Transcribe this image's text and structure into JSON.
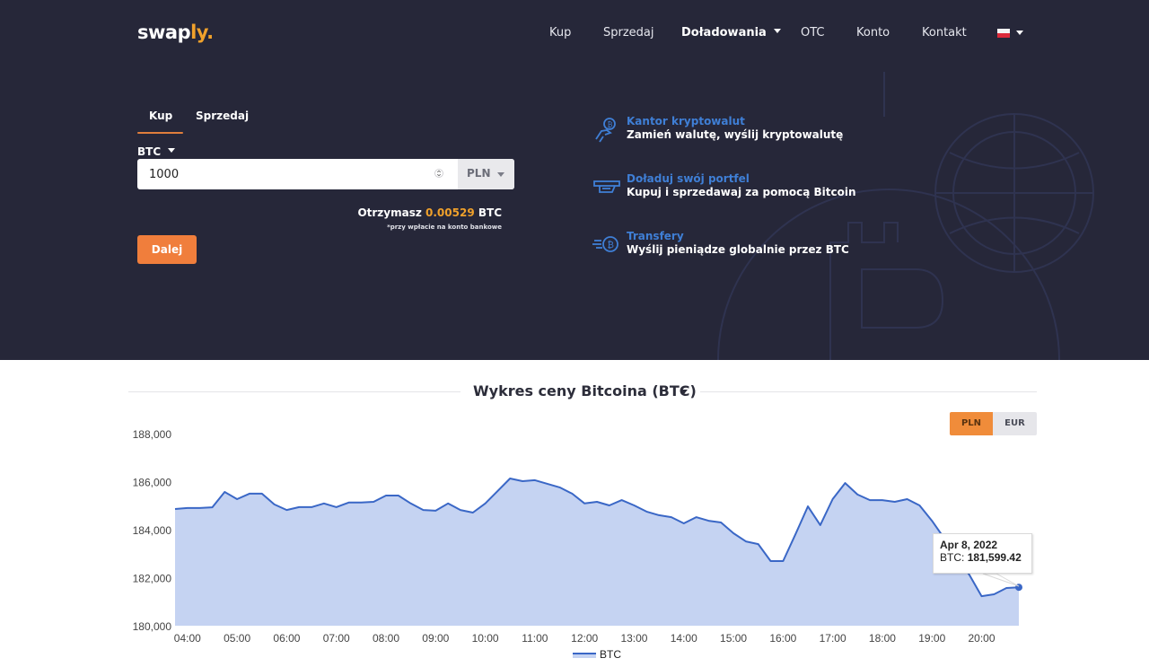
{
  "header": {
    "logo": {
      "main": "swap",
      "accent": "ly",
      "dot": "."
    },
    "nav": [
      {
        "label": "Kup"
      },
      {
        "label": "Sprzedaj"
      },
      {
        "label": "Doładowania",
        "has_dropdown": true
      },
      {
        "label": "OTC"
      },
      {
        "label": "Konto"
      },
      {
        "label": "Kontakt"
      }
    ],
    "language": {
      "flag": "pl-flag",
      "has_dropdown": true
    }
  },
  "exchange": {
    "tabs": [
      {
        "label": "Kup",
        "active": true
      },
      {
        "label": "Sprzedaj",
        "active": false
      }
    ],
    "coin": "BTC",
    "amount": "1000",
    "currency": "PLN",
    "receive_label": "Otrzymasz",
    "receive_value": "0.00529",
    "receive_unit": "BTC",
    "receive_note": "*przy wpłacie na konto bankowe",
    "next_button": "Dalej"
  },
  "features": [
    {
      "icon": "crypto-exchange-icon",
      "title": "Kantor kryptowalut",
      "desc": "Zamień walutę, wyślij kryptowalutę"
    },
    {
      "icon": "wallet-topup-icon",
      "title": "Doładuj swój portfel",
      "desc": "Kupuj i sprzedawaj za pomocą Bitcoin"
    },
    {
      "icon": "transfer-icon",
      "title": "Transfery",
      "desc": "Wyślij pieniądze globalnie przez BTC"
    }
  ],
  "chart_section": {
    "title": "Wykres ceny Bitcoina (BTC)",
    "currency_toggle": [
      {
        "label": "PLN",
        "active": true
      },
      {
        "label": "EUR",
        "active": false
      }
    ],
    "tooltip": {
      "date": "Apr 8, 2022",
      "series_label": "BTC:",
      "value": "181,599.42"
    }
  },
  "colors": {
    "hero_bg": "#262739",
    "accent_orange": "#f07e3c",
    "logo_accent": "#f0a12b",
    "feature_title_blue": "#3f7fd6",
    "line_blue": "#3a67c6",
    "area_fill": "#c5d3f2"
  },
  "chart_data": {
    "type": "area",
    "title": "Wykres ceny Bitcoina (BTC)",
    "xlabel": "",
    "ylabel": "",
    "ylim": [
      180000,
      188000
    ],
    "yticks": [
      "180,000",
      "182,000",
      "184,000",
      "186,000",
      "188,000"
    ],
    "xticks": [
      "04:00",
      "05:00",
      "06:00",
      "07:00",
      "08:00",
      "09:00",
      "10:00",
      "11:00",
      "12:00",
      "13:00",
      "14:00",
      "15:00",
      "16:00",
      "17:00",
      "18:00",
      "19:00",
      "20:00"
    ],
    "legend": {
      "position": "bottom",
      "entries": [
        "BTC"
      ]
    },
    "grid": false,
    "series": [
      {
        "name": "BTC",
        "x_start": "03:45",
        "x_step_minutes": 15,
        "values": [
          184860,
          184900,
          184900,
          184930,
          185570,
          185270,
          185500,
          185500,
          185050,
          184820,
          184940,
          184940,
          185090,
          184940,
          185130,
          185130,
          185160,
          185420,
          185420,
          185090,
          184820,
          184790,
          185090,
          184820,
          184710,
          185090,
          185610,
          186130,
          186020,
          186060,
          185910,
          185760,
          185500,
          185090,
          185160,
          185010,
          185230,
          185010,
          184750,
          184600,
          184520,
          184260,
          184520,
          184370,
          184300,
          183850,
          183510,
          183400,
          182690,
          182690,
          183810,
          184970,
          184190,
          185270,
          185940,
          185460,
          185230,
          185230,
          185160,
          185270,
          185010,
          184370,
          183630,
          182800,
          182130,
          181230,
          181310,
          181570,
          181599.42
        ]
      }
    ]
  }
}
